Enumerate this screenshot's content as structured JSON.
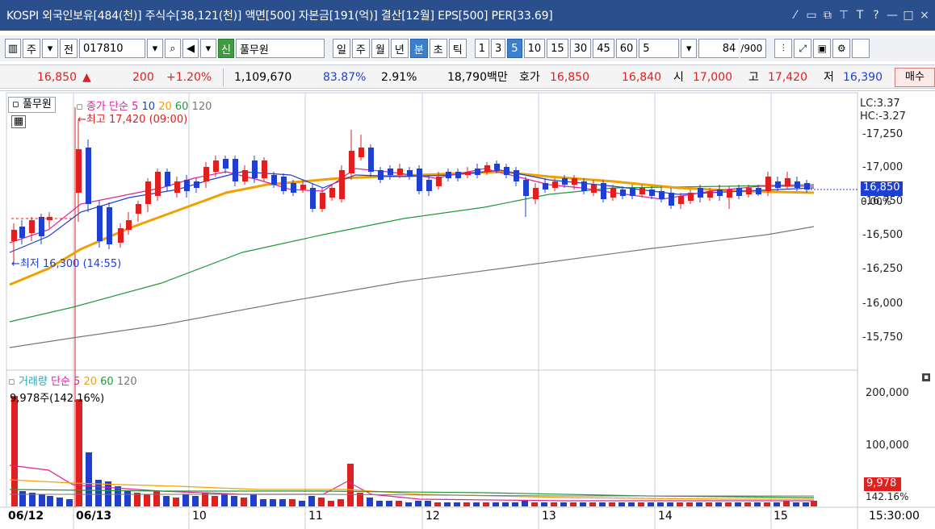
{
  "titlebar": {
    "text": "KOSPI 외국인보유[484(천)] 주식수[38,121(천)] 액면[500] 자본금[191(억)] 결산[12월] EPS[500] PER[33.69]",
    "controls": [
      "⁄",
      "▭",
      "⧉",
      "⊤",
      "T",
      "?",
      "—",
      "□",
      "×"
    ]
  },
  "toolbar": {
    "period_options": [
      "주",
      "전"
    ],
    "code": "017810",
    "search_icon": "search-icon",
    "speaker_icon": "speaker-icon",
    "credit_badge": "신",
    "stock_name": "풀무원",
    "tabs": [
      "일",
      "주",
      "월",
      "년",
      "분",
      "초",
      "틱"
    ],
    "active_tab": "분",
    "minute_buttons": [
      "1",
      "3",
      "5",
      "10",
      "15",
      "30",
      "45",
      "60"
    ],
    "active_minute": "5",
    "interval_value": "5",
    "count_value": "84",
    "count_total": "/900",
    "tool_icons": [
      "candle-settings-icon",
      "zoom-icon",
      "save-icon",
      "gear-icon",
      "checkbox-icon"
    ]
  },
  "pricebar": {
    "price": "16,850",
    "price_arrow": "▲",
    "change": "200",
    "change_pct": "+1.20%",
    "volume": "1,109,670",
    "pct1": "83.87%",
    "pct2": "2.91%",
    "trade_value": "18,790백만",
    "label_quote": "호가",
    "quote_sell": "16,850",
    "quote_buy": "16,840",
    "label_open": "시",
    "open": "17,000",
    "label_high": "고",
    "high": "17,420",
    "label_low": "저",
    "low": "16,390",
    "buy_button": "매수"
  },
  "chart": {
    "pane_tab": "풀무원",
    "ma_label": "종가 단순",
    "ma_periods": [
      "5",
      "10",
      "20",
      "60",
      "120"
    ],
    "ma_colors": [
      "#e0209a",
      "#1f3fd0",
      "#f0a000",
      "#1f9a3a",
      "#777777"
    ],
    "max_marker": "←최고 17,420 (09:00)",
    "min_marker": "←최저 16,300 (14:55)",
    "lc": "LC:3.37",
    "hc": "HC:-3.27",
    "current_price_tag": "16,850",
    "current_pct_tag": "0.00%",
    "price_ticks": [
      "17,250",
      "17,000",
      "16,750",
      "16,500",
      "16,250",
      "16,000",
      "15,750"
    ],
    "volume_label": "거래량",
    "volume_ma_label": "단순",
    "volume_ma_periods": [
      "5",
      "20",
      "60",
      "120"
    ],
    "volume_info": "9,978주(142.16%)",
    "volume_ticks": [
      "200,000",
      "100,000"
    ],
    "current_volume_tag": "9,978",
    "current_volume_pct": "142.16%",
    "x_labels": [
      "06/12",
      "06/13",
      "10",
      "11",
      "12",
      "13",
      "14",
      "15"
    ],
    "time_label": "15:30:00",
    "up_color": "#e01f1f",
    "down_color": "#1f3fd0"
  }
}
